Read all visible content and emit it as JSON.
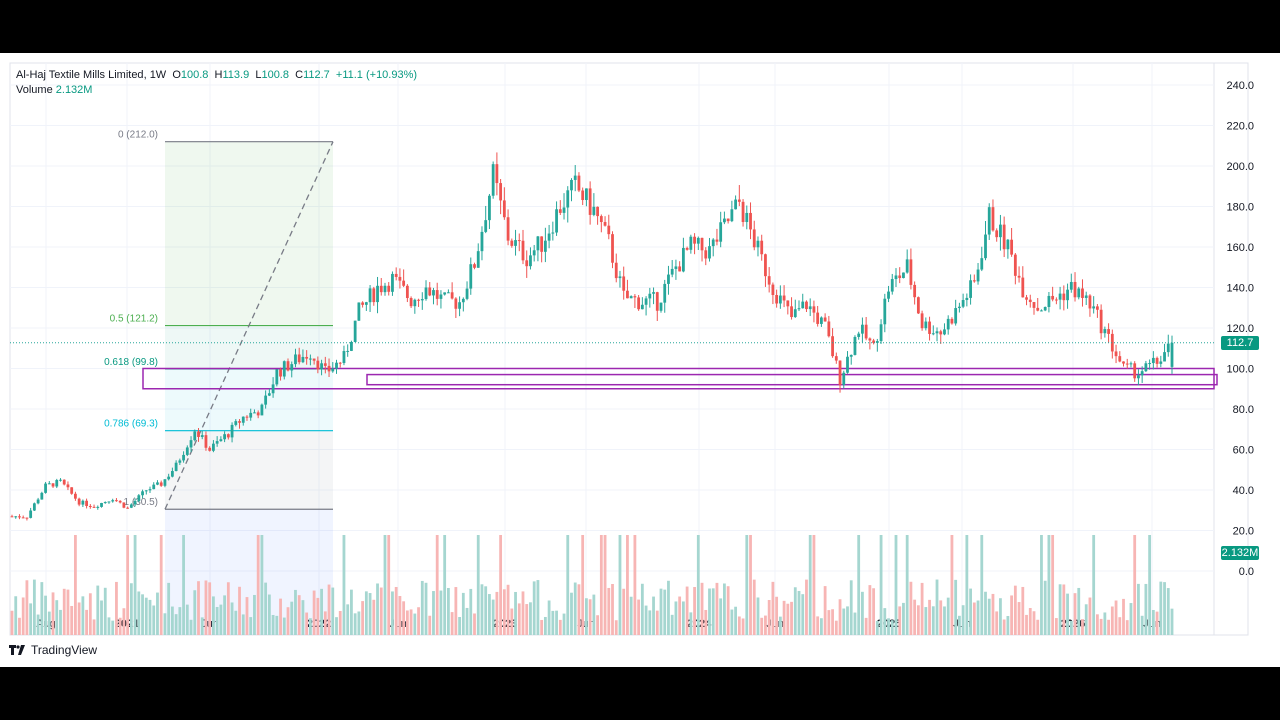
{
  "header": {
    "symbol": "Al-Haj Textile Mills Limited",
    "interval": "1W",
    "open_label": "O",
    "open": "100.8",
    "high_label": "H",
    "high": "113.9",
    "low_label": "L",
    "low": "100.8",
    "close_label": "C",
    "close": "112.7",
    "change": "+11.1 (+10.93%)",
    "volume_label": "Volume",
    "volume": "2.132M"
  },
  "price_tag": "112.7",
  "volume_tag": "2.132M",
  "brand": "TradingView",
  "colors": {
    "up": "#26a69a",
    "down": "#ef5350",
    "up_volume": "#a5d6d0",
    "down_volume": "#f7b5b4",
    "fib_zero_line": "#787b86",
    "fib_half_line": "#4caf50",
    "fib_618_line": "#089981",
    "fib_786_line": "#00bcd4",
    "fib_one_line": "#787b86",
    "zone_box": "#9c27b0",
    "price_tag_bg": "#089981",
    "volume_tag_bg": "#089981"
  },
  "chart_data": {
    "type": "candlestick",
    "timeframe": "1W",
    "y_axis": {
      "ticks": [
        "240.0",
        "220.0",
        "200.0",
        "180.0",
        "160.0",
        "140.0",
        "120.0",
        "100.0",
        "80.0",
        "60.0",
        "40.0",
        "20.0",
        "0.0"
      ],
      "range": [
        0,
        240
      ]
    },
    "x_axis": {
      "ticks": [
        "Aug",
        "2021",
        "Jun",
        "2022",
        "Jun",
        "2023",
        "Jun",
        "2024",
        "Jun",
        "2025",
        "Jun",
        "2026",
        "Jun"
      ]
    },
    "last_price": 112.7,
    "fibonacci": [
      {
        "label": "0 (212.0)",
        "level": 212.0
      },
      {
        "label": "0.5 (121.2)",
        "level": 121.2
      },
      {
        "label": "0.618 (99.8)",
        "level": 99.8
      },
      {
        "label": "0.786 (69.3)",
        "level": 69.3
      },
      {
        "label": "1 (30.5)",
        "level": 30.5
      }
    ],
    "zones": [
      {
        "from": 90,
        "to": 100
      },
      {
        "from": 92,
        "to": 97
      }
    ],
    "price_path": [
      [
        "Aug 2020",
        27
      ],
      [
        "Oct 2020",
        27
      ],
      [
        "Nov 2020",
        42
      ],
      [
        "Dec 2020",
        44
      ],
      [
        "Jan 2021",
        34
      ],
      [
        "Feb 2021",
        32
      ],
      [
        "Mar 2021",
        36
      ],
      [
        "Apr 2021",
        31
      ],
      [
        "May 2021",
        40
      ],
      [
        "Jun 2021",
        43
      ],
      [
        "Jul 2021",
        52
      ],
      [
        "Aug 2021",
        70
      ],
      [
        "Sep 2021",
        60
      ],
      [
        "Oct 2021",
        68
      ],
      [
        "Nov 2021",
        76
      ],
      [
        "Dec 2021",
        80
      ],
      [
        "Jan 2022",
        98
      ],
      [
        "Feb 2022",
        104
      ],
      [
        "Mar 2022",
        108
      ],
      [
        "Apr 2022",
        98
      ],
      [
        "May 2022",
        105
      ],
      [
        "Jun 2022",
        128
      ],
      [
        "Jul 2022",
        140
      ],
      [
        "Aug 2022",
        144
      ],
      [
        "Sep 2022",
        134
      ],
      [
        "Oct 2022",
        140
      ],
      [
        "Nov 2022",
        133
      ],
      [
        "Dec 2022",
        133
      ],
      [
        "Jan 2023",
        152
      ],
      [
        "Feb 2023",
        195
      ],
      [
        "Mar 2023",
        165
      ],
      [
        "Apr 2023",
        155
      ],
      [
        "May 2023",
        162
      ],
      [
        "Jun 2023",
        180
      ],
      [
        "Jul 2023",
        190
      ],
      [
        "Aug 2023",
        178
      ],
      [
        "Sep 2023",
        162
      ],
      [
        "Oct 2023",
        135
      ],
      [
        "Nov 2023",
        133
      ],
      [
        "Dec 2023",
        133
      ],
      [
        "Jan 2024",
        150
      ],
      [
        "Feb 2024",
        160
      ],
      [
        "Mar 2024",
        158
      ],
      [
        "Apr 2024",
        170
      ],
      [
        "May 2024",
        182
      ],
      [
        "Jun 2024",
        158
      ],
      [
        "Jul 2024",
        140
      ],
      [
        "Aug 2024",
        125
      ],
      [
        "Sep 2024",
        132
      ],
      [
        "Oct 2024",
        120
      ],
      [
        "Nov 2024",
        95
      ],
      [
        "Dec 2024",
        120
      ],
      [
        "Jan 2025",
        110
      ],
      [
        "Feb 2025",
        140
      ],
      [
        "Mar 2025",
        150
      ],
      [
        "Apr 2025",
        122
      ],
      [
        "May 2025",
        118
      ],
      [
        "Jun 2025",
        128
      ],
      [
        "Jul 2025",
        142
      ],
      [
        "Aug 2025",
        175
      ],
      [
        "Sep 2025",
        160
      ],
      [
        "Oct 2025",
        140
      ],
      [
        "Nov 2025",
        130
      ],
      [
        "Dec 2025",
        135
      ],
      [
        "Jan 2026",
        140
      ],
      [
        "Feb 2026",
        132
      ],
      [
        "Mar 2026",
        118
      ],
      [
        "Apr 2026",
        100
      ],
      [
        "May 2026",
        98
      ],
      [
        "Jun 2026",
        103
      ],
      [
        "Jul 2026",
        112.7
      ]
    ]
  }
}
